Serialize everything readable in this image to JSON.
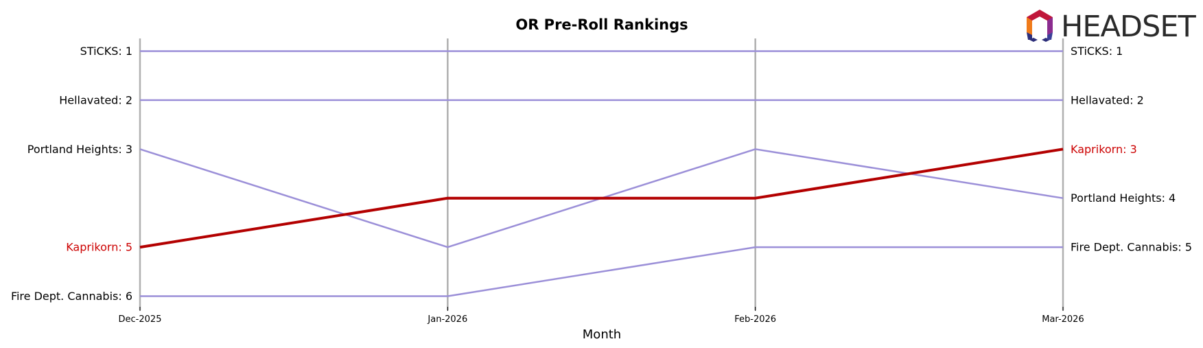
{
  "chart_data": {
    "type": "line",
    "title": "OR Pre-Roll Rankings",
    "xlabel": "Month",
    "ylabel": "",
    "x": [
      "Dec-2025",
      "Jan-2026",
      "Feb-2026",
      "Mar-2026"
    ],
    "ylim": [
      6,
      1
    ],
    "y_inverted": true,
    "grid": "vertical lines at each month",
    "series": [
      {
        "name": "STiCKS",
        "values": [
          1,
          1,
          1,
          1
        ],
        "highlight": false
      },
      {
        "name": "Hellavated",
        "values": [
          2,
          2,
          2,
          2
        ],
        "highlight": false
      },
      {
        "name": "Portland Heights",
        "values": [
          3,
          5,
          3,
          4
        ],
        "highlight": false
      },
      {
        "name": "Kaprikorn",
        "values": [
          5,
          4,
          4,
          3
        ],
        "highlight": true
      },
      {
        "name": "Fire Dept. Cannabis",
        "values": [
          6,
          6,
          5,
          5
        ],
        "highlight": false
      }
    ],
    "left_labels": [
      {
        "text": "STiCKS: 1",
        "rank": 1,
        "highlight": false
      },
      {
        "text": "Hellavated: 2",
        "rank": 2,
        "highlight": false
      },
      {
        "text": "Portland Heights: 3",
        "rank": 3,
        "highlight": false
      },
      {
        "text": "Kaprikorn: 5",
        "rank": 5,
        "highlight": true
      },
      {
        "text": "Fire Dept. Cannabis: 6",
        "rank": 6,
        "highlight": false
      }
    ],
    "right_labels": [
      {
        "text": "STiCKS: 1",
        "rank": 1,
        "highlight": false
      },
      {
        "text": "Hellavated: 2",
        "rank": 2,
        "highlight": false
      },
      {
        "text": "Kaprikorn: 3",
        "rank": 3,
        "highlight": true
      },
      {
        "text": "Portland Heights: 4",
        "rank": 4,
        "highlight": false
      },
      {
        "text": "Fire Dept. Cannabis: 5",
        "rank": 5,
        "highlight": false
      }
    ],
    "colors": {
      "series": "#9b8fd8",
      "highlight": "#b30000",
      "highlight_label": "#cc0000",
      "gridline": "#b0b0b0"
    }
  },
  "logo": {
    "text": "HEADSET",
    "icon": "headset-hexagon-logo-icon"
  }
}
